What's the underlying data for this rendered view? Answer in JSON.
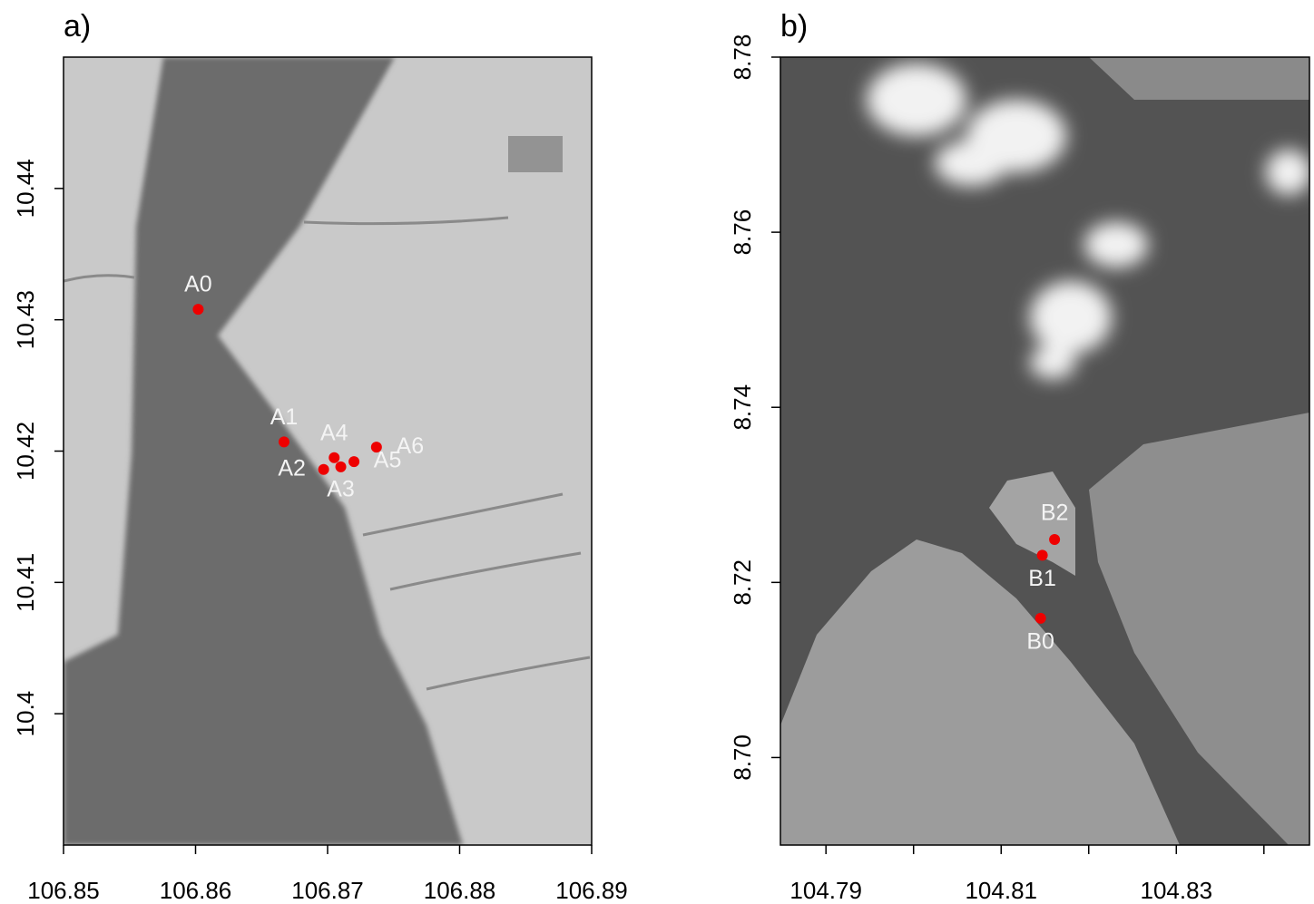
{
  "chart_data": [
    {
      "type": "scatter",
      "title": "a)",
      "x": [
        106.8602,
        106.8667,
        106.8697,
        106.871,
        106.8705,
        106.872,
        106.8737
      ],
      "series": [
        {
          "name": null,
          "color": "#ee0000",
          "labels": [
            "A0",
            "A1",
            "A2",
            "A3",
            "A4",
            "A5",
            "A6"
          ],
          "values": [
            10.4308,
            10.4207,
            10.4186,
            10.4188,
            10.4195,
            10.4192,
            10.4203
          ]
        }
      ],
      "xlim": [
        106.85,
        106.89
      ],
      "xticks": [
        106.85,
        106.86,
        106.87,
        106.88,
        106.89
      ],
      "ylim": [
        10.39,
        10.45
      ],
      "yticks": [
        10.4,
        10.41,
        10.42,
        10.43,
        10.44
      ]
    },
    {
      "type": "scatter",
      "title": "b)",
      "x": [
        104.8145,
        104.8147,
        104.8161
      ],
      "series": [
        {
          "name": null,
          "color": "#ee0000",
          "labels": [
            "B0",
            "B1",
            "B2"
          ],
          "values": [
            8.7159,
            8.7231,
            8.7249
          ]
        }
      ],
      "xlim": [
        104.7848,
        104.8452
      ],
      "xticks": [
        104.79,
        {
          "value": 104.8,
          "label": null
        },
        104.81,
        {
          "value": 104.82,
          "label": null
        },
        104.83,
        {
          "value": 104.84,
          "label": null
        }
      ],
      "ylim": [
        8.69,
        8.78
      ],
      "yticks": [
        {
          "value": 8.7,
          "label": "8.70"
        },
        8.72,
        8.74,
        8.76,
        {
          "value": 8.78,
          "label": "8.78"
        }
      ]
    }
  ]
}
